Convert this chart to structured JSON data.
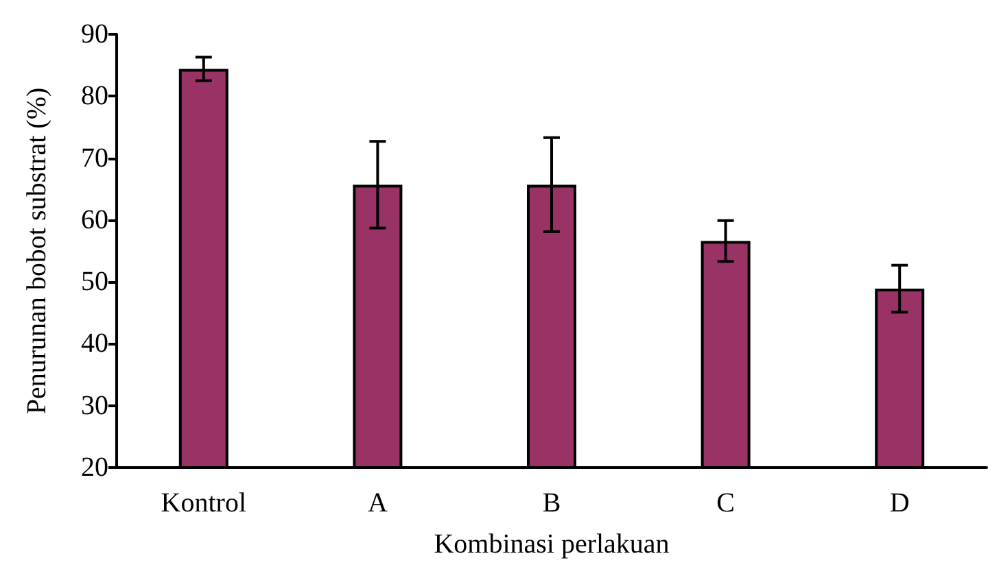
{
  "chart_data": {
    "type": "bar",
    "xlabel": "Kombinasi perlakuan",
    "ylabel": "Penurunan bobot substrat (%)",
    "categories": [
      "Kontrol",
      "A",
      "B",
      "C",
      "D"
    ],
    "values": [
      84.4,
      65.7,
      65.7,
      56.6,
      48.9
    ],
    "errors": [
      1.9,
      7,
      7.6,
      3.3,
      3.8
    ],
    "color": "#993366",
    "ylim": [
      20,
      90
    ],
    "yticks": [
      20,
      30,
      40,
      50,
      60,
      70,
      80,
      90
    ],
    "grid": false
  }
}
